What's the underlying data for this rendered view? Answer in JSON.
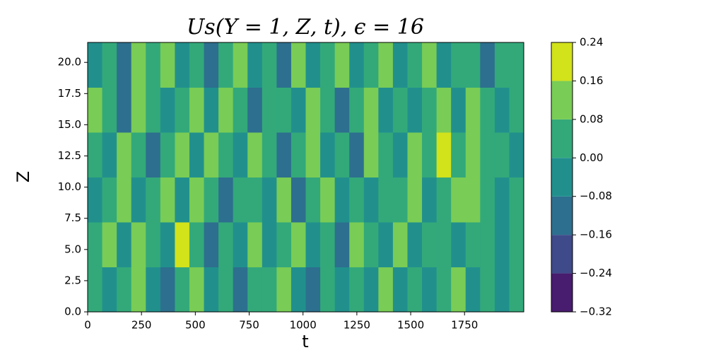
{
  "chart_data": {
    "type": "contourf",
    "title": "Us(Y = 1, Z, t), ϵ = 16",
    "xlabel": "t",
    "ylabel": "Z",
    "xlim": [
      0,
      2025
    ],
    "ylim": [
      0,
      21.6
    ],
    "xticks": [
      0,
      250,
      500,
      750,
      1000,
      1250,
      1500,
      1750
    ],
    "yticks": [
      {
        "value": 0,
        "label": "0.0"
      },
      2.5,
      {
        "value": 5,
        "label": "5.0"
      },
      7.5,
      {
        "value": 10,
        "label": "10.0"
      },
      12.5,
      {
        "value": 15,
        "label": "15.0"
      },
      17.5,
      {
        "value": 20,
        "label": "20.0"
      }
    ],
    "x_edges": [
      0,
      67.5,
      135,
      202.5,
      270,
      337.5,
      405,
      472.5,
      540,
      607.5,
      675,
      742.5,
      810,
      877.5,
      945,
      1012.5,
      1080,
      1147.5,
      1215,
      1282.5,
      1350,
      1417.5,
      1485,
      1552.5,
      1620,
      1687.5,
      1755,
      1822.5,
      1890,
      1957.5,
      2025
    ],
    "y_edges": [
      0,
      3.6,
      7.2,
      10.8,
      14.4,
      18,
      21.6
    ],
    "z": [
      [
        0.02,
        -0.05,
        0.06,
        0.1,
        -0.03,
        -0.1,
        0.04,
        0.09,
        -0.06,
        0.03,
        -0.12,
        0.05,
        0.0,
        0.11,
        -0.04,
        -0.09,
        0.07,
        -0.02,
        0.04,
        -0.07,
        0.1,
        -0.03,
        0.06,
        -0.05,
        0.02,
        0.09,
        -0.06,
        0.03,
        -0.02,
        0.05
      ],
      [
        0.05,
        0.1,
        -0.04,
        0.13,
        0.02,
        -0.07,
        0.17,
        0.03,
        -0.1,
        0.06,
        -0.02,
        0.12,
        -0.08,
        0.04,
        0.09,
        -0.05,
        0.02,
        -0.11,
        0.08,
        0.03,
        -0.04,
        0.14,
        -0.06,
        0.01,
        0.07,
        -0.03,
        0.05,
        0.0,
        -0.06,
        0.03
      ],
      [
        -0.02,
        0.07,
        0.11,
        -0.06,
        0.05,
        0.09,
        -0.03,
        0.14,
        0.02,
        -0.13,
        0.07,
        0.04,
        -0.05,
        0.1,
        -0.09,
        0.03,
        0.12,
        -0.04,
        0.06,
        -0.08,
        0.02,
        0.05,
        0.09,
        -0.02,
        0.04,
        0.08,
        0.13,
        0.02,
        -0.04,
        0.06
      ],
      [
        0.04,
        -0.08,
        0.09,
        0.03,
        -0.12,
        0.06,
        0.1,
        -0.05,
        0.08,
        0.01,
        -0.07,
        0.13,
        0.05,
        -0.1,
        0.04,
        0.08,
        -0.03,
        0.06,
        -0.14,
        0.09,
        0.03,
        -0.06,
        0.1,
        0.04,
        0.17,
        0.06,
        0.12,
        0.05,
        0.02,
        -0.03
      ],
      [
        0.08,
        0.02,
        -0.1,
        0.12,
        0.06,
        -0.04,
        0.03,
        0.15,
        -0.07,
        0.09,
        0.02,
        -0.11,
        0.07,
        0.03,
        -0.06,
        0.1,
        0.04,
        -0.09,
        0.05,
        0.11,
        -0.02,
        0.07,
        -0.05,
        0.03,
        0.09,
        -0.04,
        0.1,
        0.03,
        -0.07,
        0.04
      ],
      [
        -0.03,
        0.06,
        -0.15,
        0.09,
        0.04,
        0.11,
        -0.06,
        0.05,
        -0.12,
        0.07,
        0.13,
        -0.03,
        0.06,
        -0.1,
        0.08,
        -0.02,
        0.05,
        0.1,
        -0.07,
        0.03,
        0.09,
        -0.04,
        0.06,
        0.12,
        -0.05,
        0.03,
        0.07,
        -0.09,
        0.05,
        0.02
      ]
    ],
    "levels": [
      {
        "value": -0.32,
        "label": "−0.32"
      },
      {
        "value": -0.24,
        "label": "−0.24"
      },
      {
        "value": -0.16,
        "label": "−0.16"
      },
      {
        "value": -0.08,
        "label": "−0.08"
      },
      {
        "value": 0,
        "label": "0.00"
      },
      0.08,
      0.16,
      0.24
    ],
    "colors": [
      "#481c6e",
      "#3e4a89",
      "#2d6f8e",
      "#21908d",
      "#33a97a",
      "#79cc55",
      "#d2e21b"
    ]
  }
}
